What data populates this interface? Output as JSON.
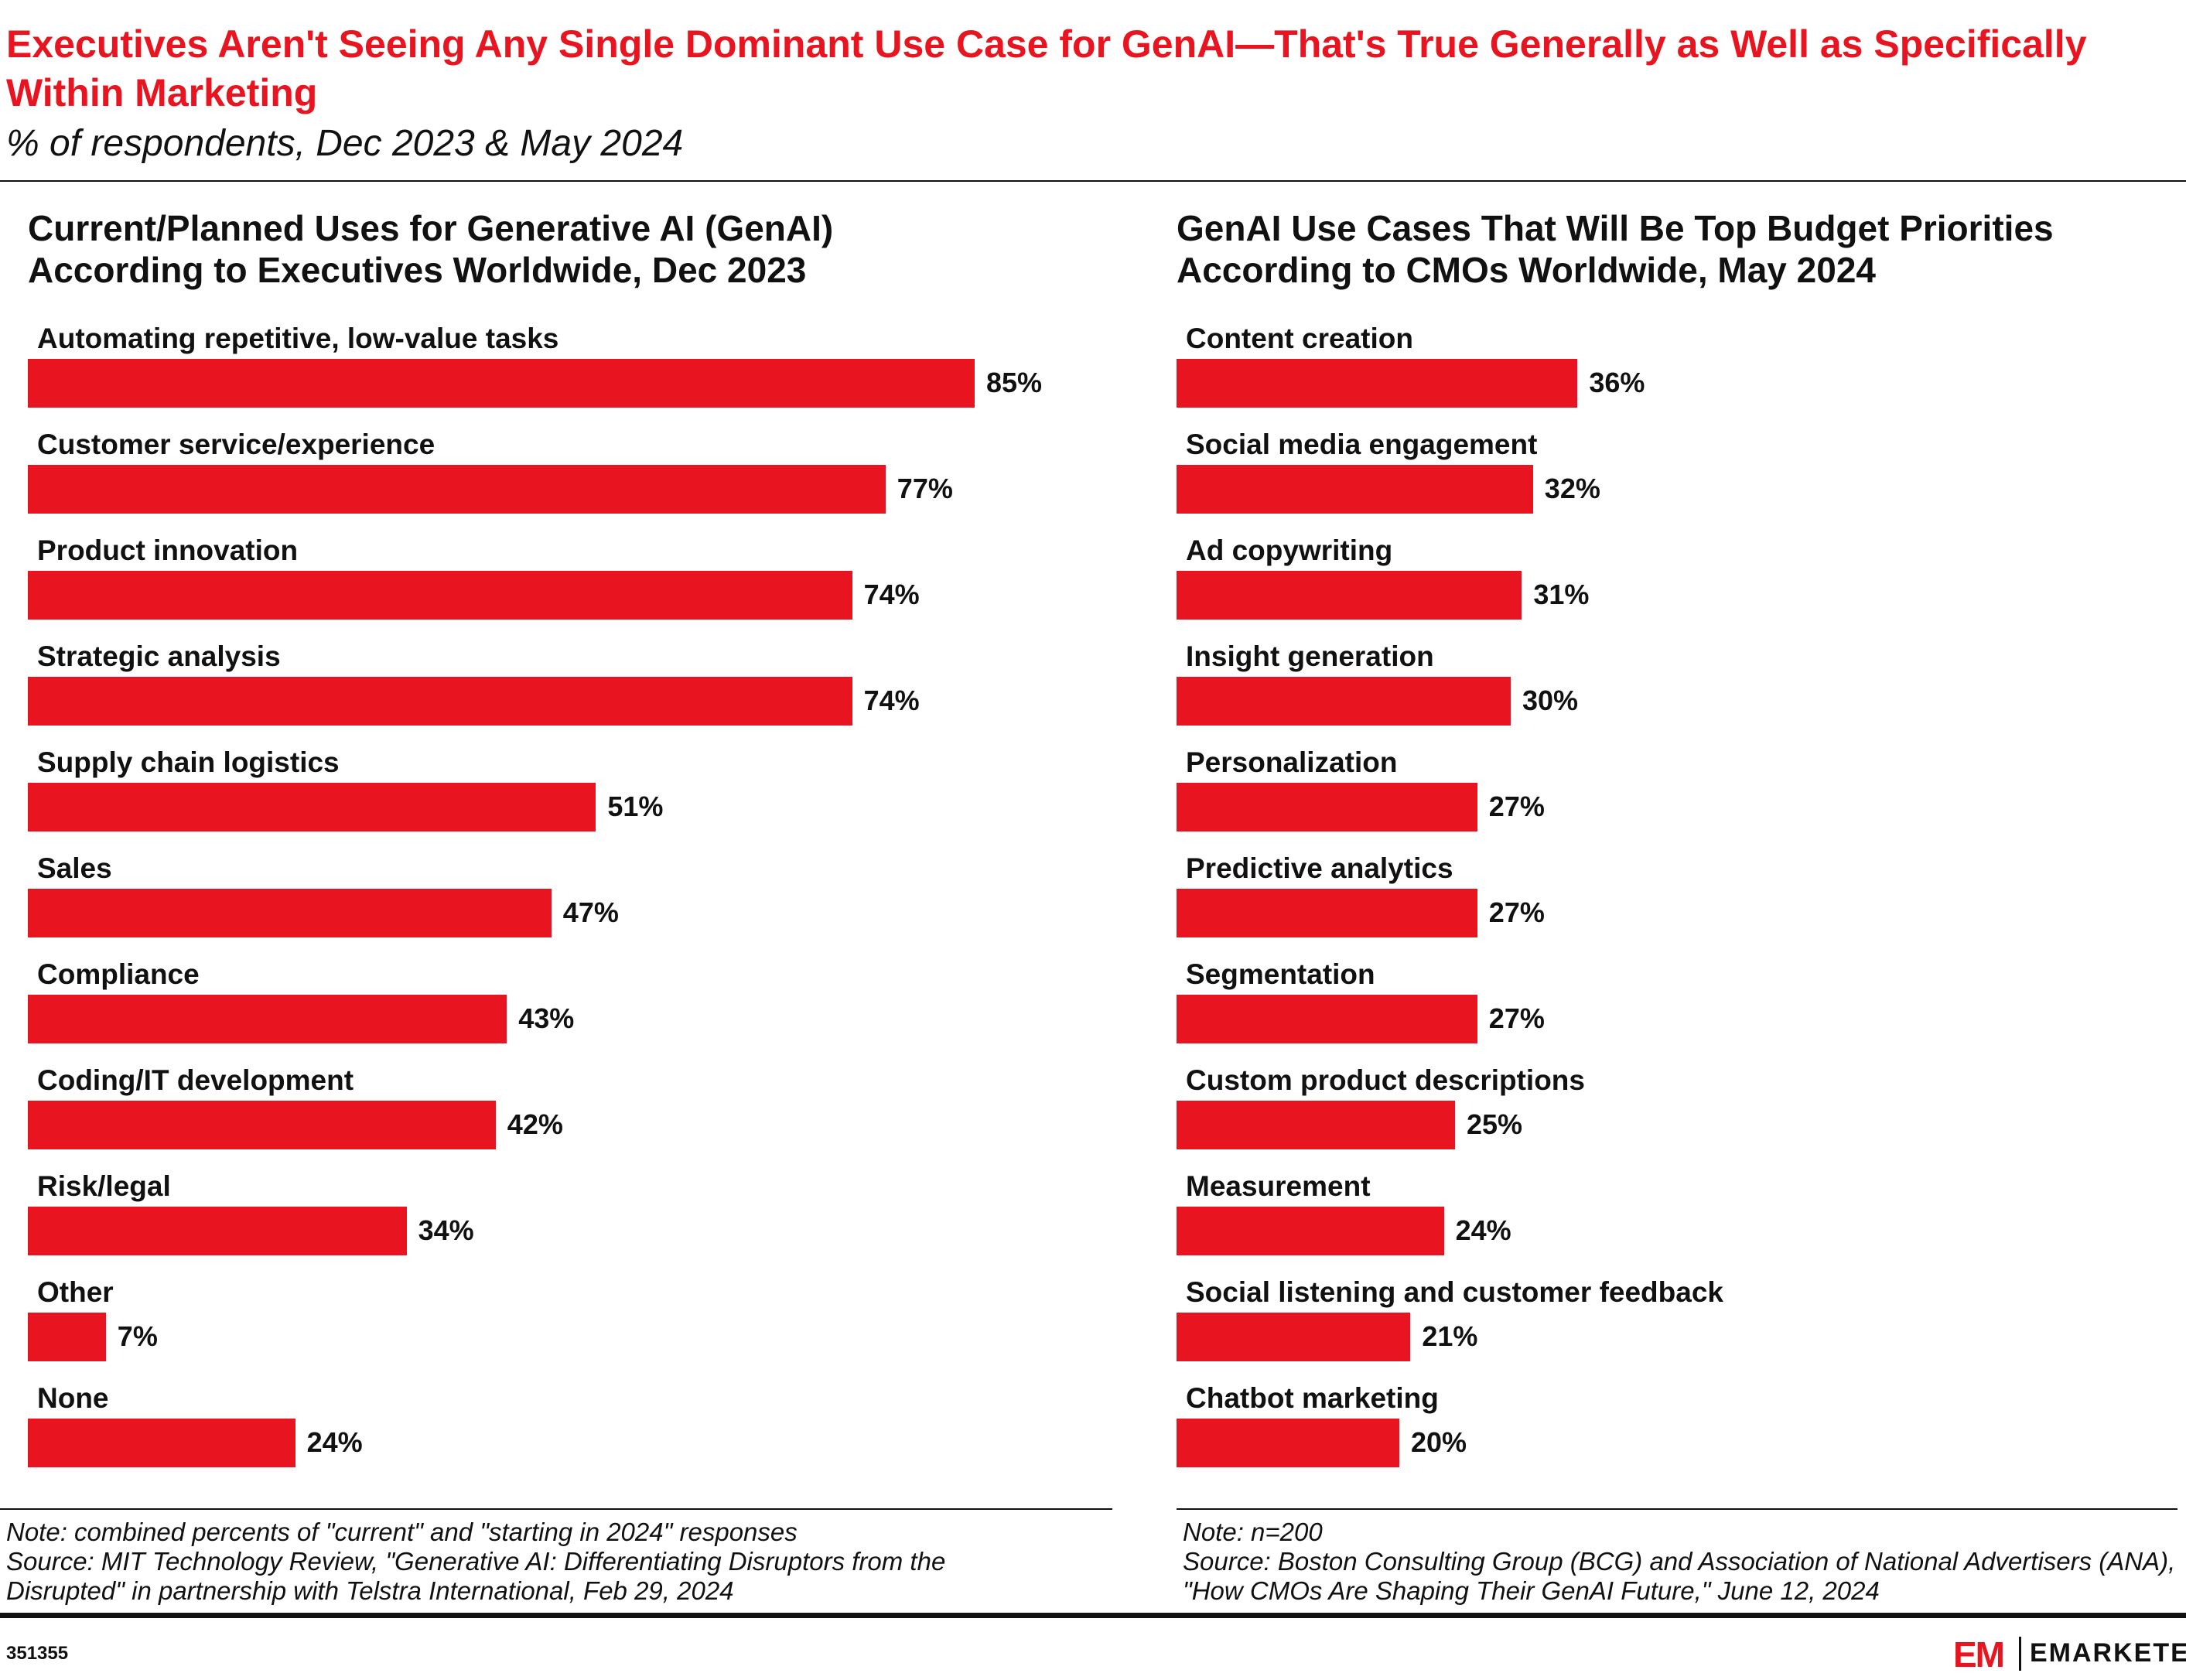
{
  "header": {
    "title": "Executives Aren't Seeing Any Single Dominant Use Case for GenAI—That's True Generally as Well as Specifically Within Marketing",
    "subtitle": "% of respondents, Dec 2023 & May 2024"
  },
  "chart_data": [
    {
      "type": "bar",
      "title": "Current/Planned Uses for Generative AI (GenAI) According to Executives Worldwide, Dec 2023",
      "categories": [
        "Automating repetitive, low-value tasks",
        "Customer service/experience",
        "Product innovation",
        "Strategic analysis",
        "Supply chain logistics",
        "Sales",
        "Compliance",
        "Coding/IT development",
        "Risk/legal",
        "Other",
        "None"
      ],
      "values": [
        85,
        77,
        74,
        74,
        51,
        47,
        43,
        42,
        34,
        7,
        24
      ],
      "value_labels": [
        "85%",
        "77%",
        "74%",
        "74%",
        "51%",
        "47%",
        "43%",
        "42%",
        "34%",
        "7%",
        "24%"
      ],
      "color": "#e8141f",
      "note": "Note: combined percents of \"current\" and \"starting in 2024\" responses",
      "source": "Source: MIT Technology Review, \"Generative AI: Differentiating Disruptors from the Disrupted\" in partnership with Telstra International, Feb 29, 2024"
    },
    {
      "type": "bar",
      "title": "GenAI Use Cases That Will Be Top Budget Priorities According to CMOs Worldwide, May 2024",
      "categories": [
        "Content creation",
        "Social media engagement",
        "Ad copywriting",
        "Insight generation",
        "Personalization",
        "Predictive analytics",
        "Segmentation",
        "Custom product descriptions",
        "Measurement",
        "Social listening and customer feedback",
        "Chatbot marketing"
      ],
      "values": [
        36,
        32,
        31,
        30,
        27,
        27,
        27,
        25,
        24,
        21,
        20
      ],
      "value_labels": [
        "36%",
        "32%",
        "31%",
        "30%",
        "27%",
        "27%",
        "27%",
        "25%",
        "24%",
        "21%",
        "20%"
      ],
      "color": "#e8141f",
      "note": "Note: n=200",
      "source": "Source:  Boston Consulting Group (BCG) and Association of National Advertisers (ANA), \"How CMOs Are Shaping Their GenAI Future,\" June 12, 2024"
    }
  ],
  "footer": {
    "id": "351355",
    "brand_mark": "EM",
    "brand": "EMARKETER"
  }
}
